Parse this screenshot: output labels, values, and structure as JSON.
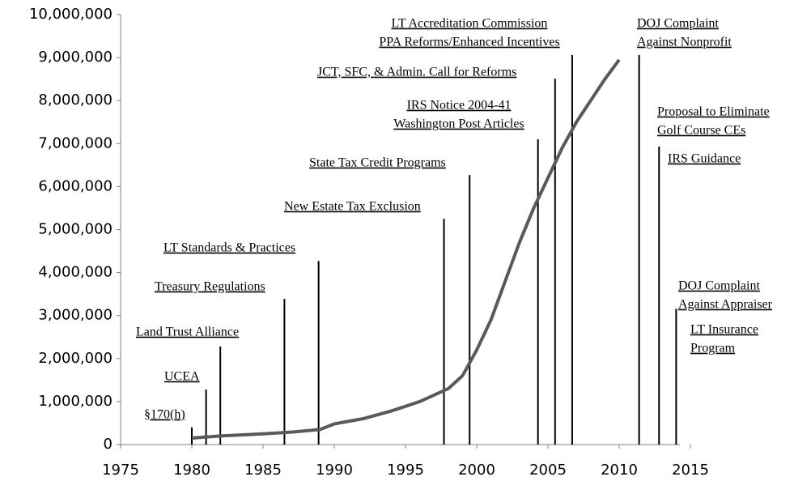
{
  "chart_data": {
    "type": "line",
    "x": [
      1980,
      1982,
      1985,
      1987,
      1989,
      1990,
      1992,
      1994,
      1996,
      1998,
      1999,
      2000,
      2001,
      2002,
      2003,
      2004,
      2005,
      2006,
      2007,
      2008,
      2009,
      2010
    ],
    "series": [
      {
        "color": "#595959",
        "values": [
          150000,
          200000,
          250000,
          290000,
          350000,
          480000,
          600000,
          780000,
          1000000,
          1300000,
          1600000,
          2200000,
          2900000,
          3800000,
          4700000,
          5500000,
          6200000,
          6900000,
          7500000,
          8000000,
          8500000,
          8950000
        ]
      }
    ],
    "xlim": [
      1975,
      2015
    ],
    "xticks": [
      1975,
      1980,
      1985,
      1990,
      1995,
      2000,
      2005,
      2010,
      2015
    ],
    "ylim": [
      0,
      10000000
    ],
    "yticks": [
      {
        "value": 0,
        "label": "0"
      },
      {
        "value": 1000000,
        "label": "1,000,000"
      },
      {
        "value": 2000000,
        "label": "2,000,000"
      },
      {
        "value": 3000000,
        "label": "3,000,000"
      },
      {
        "value": 4000000,
        "label": "4,000,000"
      },
      {
        "value": 5000000,
        "label": "5,000,000"
      },
      {
        "value": 6000000,
        "label": "6,000,000"
      },
      {
        "value": 7000000,
        "label": "7,000,000"
      },
      {
        "value": 8000000,
        "label": "8,000,000"
      },
      {
        "value": 9000000,
        "label": "9,000,000"
      },
      {
        "value": 10000000,
        "label": "10,000,000"
      }
    ],
    "annotations": [
      {
        "text": [
          "§170(h)"
        ],
        "x": 1980,
        "top": 400000
      },
      {
        "text": [
          "UCEA"
        ],
        "x": 1981,
        "top": 1280000
      },
      {
        "text": [
          "Land Trust Alliance"
        ],
        "x": 1982,
        "top": 2280000
      },
      {
        "text": [
          "Treasury Regulations"
        ],
        "x": 1986.5,
        "top": 3390000
      },
      {
        "text": [
          "LT Standards & Practices"
        ],
        "x": 1988.9,
        "top": 4270000
      },
      {
        "text": [
          "New Estate Tax Exclusion"
        ],
        "x": 1997.7,
        "top": 5250000
      },
      {
        "text": [
          "State Tax Credit Programs"
        ],
        "x": 1999.5,
        "top": 6270000
      },
      {
        "text": [
          "IRS Notice 2004-41",
          "Washington Post Articles"
        ],
        "x": 2004.3,
        "top": 7100000
      },
      {
        "text": [
          "JCT, SFC, & Admin. Call for Reforms"
        ],
        "x": 2005.5,
        "top": 8510000
      },
      {
        "text": [
          "LT Accreditation Commission",
          "PPA Reforms/Enhanced Incentives"
        ],
        "x": 2006.7,
        "top": 9060000
      },
      {
        "text": [
          "DOJ Complaint",
          "Against Nonprofit"
        ],
        "x": 2011.4,
        "top": 9060000
      },
      {
        "text": [
          "Proposal to Eliminate",
          "Golf Course CEs"
        ]
      },
      {
        "text": [
          "IRS Guidance"
        ],
        "x": 2012.8,
        "top": 6930000
      },
      {
        "text": [
          "DOJ Complaint",
          "Against Appraiser"
        ],
        "x": 2014,
        "top": 3160000
      },
      {
        "text": [
          "LT Insurance",
          "Program"
        ]
      }
    ]
  }
}
